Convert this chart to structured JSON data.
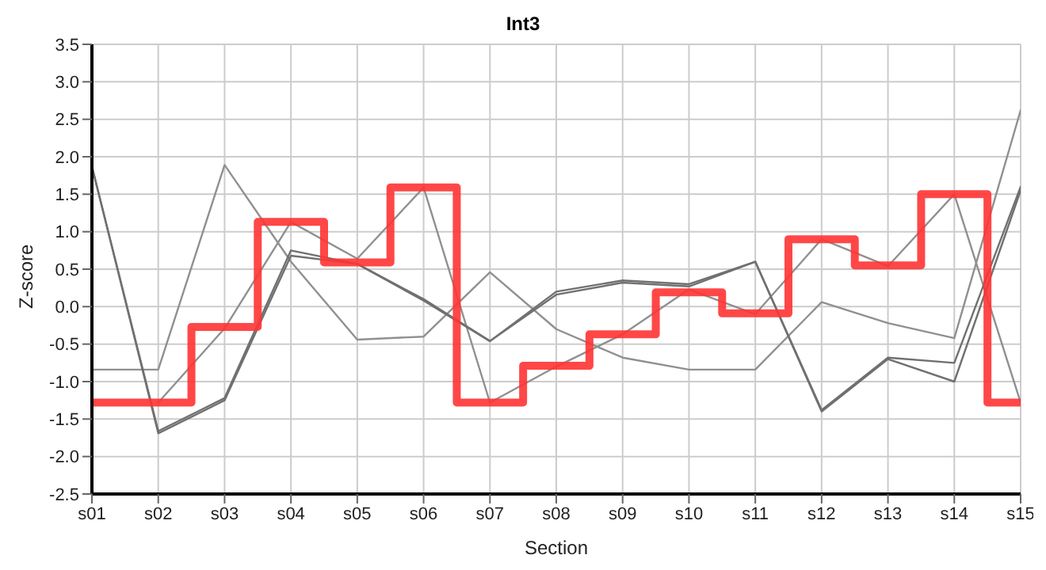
{
  "chart_data": {
    "type": "line",
    "title": "Int3",
    "xlabel": "Section",
    "ylabel": "Z-score",
    "categories": [
      "s01",
      "s02",
      "s03",
      "s04",
      "s05",
      "s06",
      "s07",
      "s08",
      "s09",
      "s10",
      "s11",
      "s12",
      "s13",
      "s14",
      "s15"
    ],
    "series": [
      {
        "color": "#909090",
        "values": [
          -0.84,
          -0.84,
          1.89,
          0.6,
          -0.44,
          -0.4,
          0.46,
          -0.3,
          -0.68,
          -0.84,
          -0.84,
          0.06,
          -0.22,
          -0.42,
          2.62
        ]
      },
      {
        "color": "#909090",
        "values": [
          null,
          -1.28,
          -0.29,
          1.13,
          0.64,
          1.59,
          -1.28,
          -0.8,
          -0.37,
          0.23,
          -0.1,
          0.9,
          0.54,
          1.5,
          -1.28
        ]
      },
      {
        "color": "#707070",
        "values": [
          1.87,
          -1.66,
          -1.22,
          0.75,
          0.57,
          0.08,
          -0.46,
          0.16,
          0.32,
          0.27,
          0.6,
          -1.38,
          -0.68,
          -0.75,
          1.6
        ]
      },
      {
        "color": "#707070",
        "values": [
          1.87,
          -1.69,
          -1.25,
          0.68,
          0.57,
          0.1,
          -0.46,
          0.2,
          0.35,
          0.3,
          0.6,
          -1.4,
          -0.7,
          -1.0,
          1.55
        ]
      },
      {
        "type": "step",
        "color": "#ff3333",
        "values": [
          -1.28,
          -1.28,
          -0.27,
          1.13,
          0.59,
          1.59,
          -1.28,
          -0.79,
          -0.37,
          0.19,
          -0.09,
          0.9,
          0.55,
          1.5,
          -1.28
        ]
      }
    ],
    "ylim": [
      -2.5,
      3.5
    ],
    "yticks": [
      -2.5,
      {
        "value": -2,
        "label": "-2.0"
      },
      -1.5,
      {
        "value": -1,
        "label": "-1.0"
      },
      -0.5,
      {
        "value": 0,
        "label": "0.0"
      },
      0.5,
      {
        "value": 1,
        "label": "1.0"
      },
      1.5,
      {
        "value": 2,
        "label": "2.0"
      },
      2.5,
      {
        "value": 3,
        "label": "3.0"
      },
      3.5
    ],
    "grid": true,
    "marker": "none",
    "line_style": "solid",
    "legend": false
  }
}
